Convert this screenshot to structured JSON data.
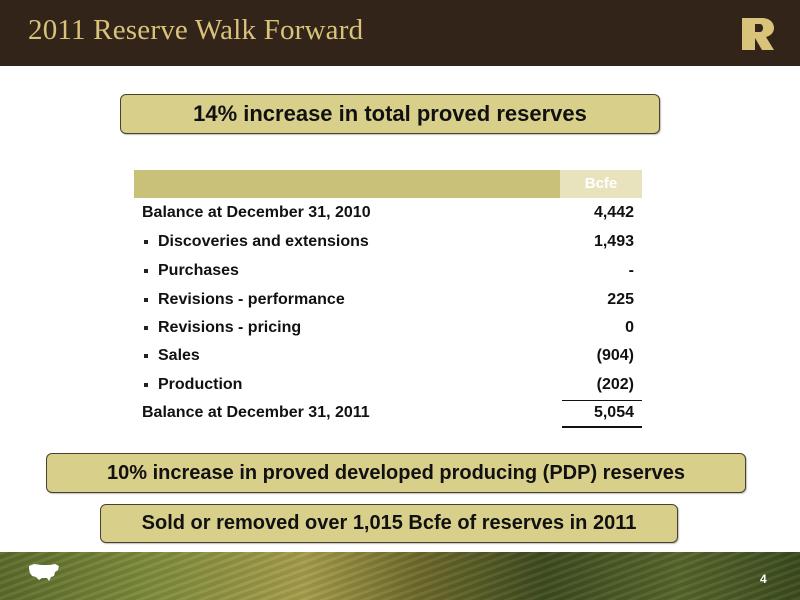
{
  "header": {
    "title": "2011 Reserve Walk Forward",
    "logo_icon": "r-logo-icon",
    "logo_color": "#d9c27a",
    "background_color": "#33241a"
  },
  "callouts": {
    "top": "14% increase in total proved reserves",
    "pdp": "10% increase in proved developed producing (PDP) reserves",
    "sold": "Sold or removed over 1,015 Bcfe of reserves in 2011"
  },
  "table": {
    "column_header": "Bcfe",
    "rows": [
      {
        "label": "Balance at December 31, 2010",
        "value": "4,442",
        "bullet": false
      },
      {
        "label": "Discoveries and extensions",
        "value": "1,493",
        "bullet": true
      },
      {
        "label": "Purchases",
        "value": "-",
        "bullet": true
      },
      {
        "label": "Revisions - performance",
        "value": "225",
        "bullet": true
      },
      {
        "label": "Revisions - pricing",
        "value": "0",
        "bullet": true
      },
      {
        "label": "Sales",
        "value": "(904)",
        "bullet": true
      },
      {
        "label": "Production",
        "value": "(202)",
        "bullet": true
      },
      {
        "label": "Balance at December 31, 2011",
        "value": "5,054",
        "bullet": false
      }
    ]
  },
  "footer": {
    "page_number": "4",
    "map_icon": "us-map-icon"
  },
  "colors": {
    "callout_fill": "#d8cf8a",
    "table_header_fill": "#c9c07a"
  }
}
